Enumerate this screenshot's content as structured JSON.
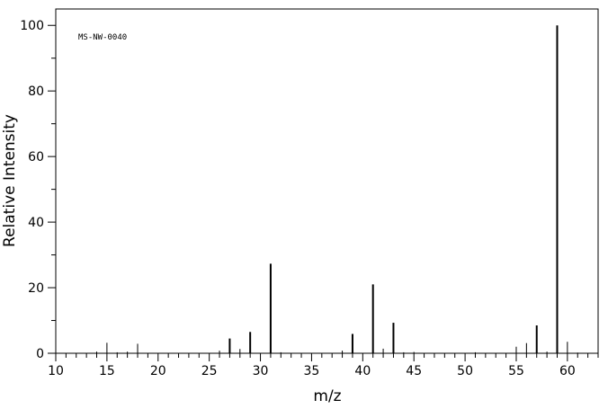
{
  "chart_data": {
    "type": "bar",
    "annotation": "MS-NW-0040",
    "xlabel": "m/z",
    "ylabel": "Relative Intensity",
    "xlim": [
      10,
      63
    ],
    "ylim": [
      0,
      105
    ],
    "x_ticks_major": [
      10,
      15,
      20,
      25,
      30,
      35,
      40,
      45,
      50,
      55,
      60
    ],
    "y_ticks_major": [
      0,
      20,
      40,
      60,
      80,
      100
    ],
    "grid": false,
    "legend": "none",
    "series": [
      {
        "x": [
          14,
          15,
          16,
          17,
          18,
          26,
          27,
          28,
          29,
          31,
          32,
          38,
          39,
          41,
          42,
          43,
          44,
          45,
          51,
          55,
          56,
          57,
          58,
          59,
          60,
          61
        ],
        "values": [
          0.5,
          3.2,
          0.3,
          0.5,
          2.9,
          0.8,
          4.5,
          1.3,
          6.5,
          27.3,
          0.3,
          0.8,
          5.9,
          21.0,
          1.4,
          9.3,
          0.3,
          0.4,
          0.3,
          2.0,
          3.1,
          8.5,
          0.5,
          100,
          3.5,
          0.2
        ]
      }
    ]
  }
}
